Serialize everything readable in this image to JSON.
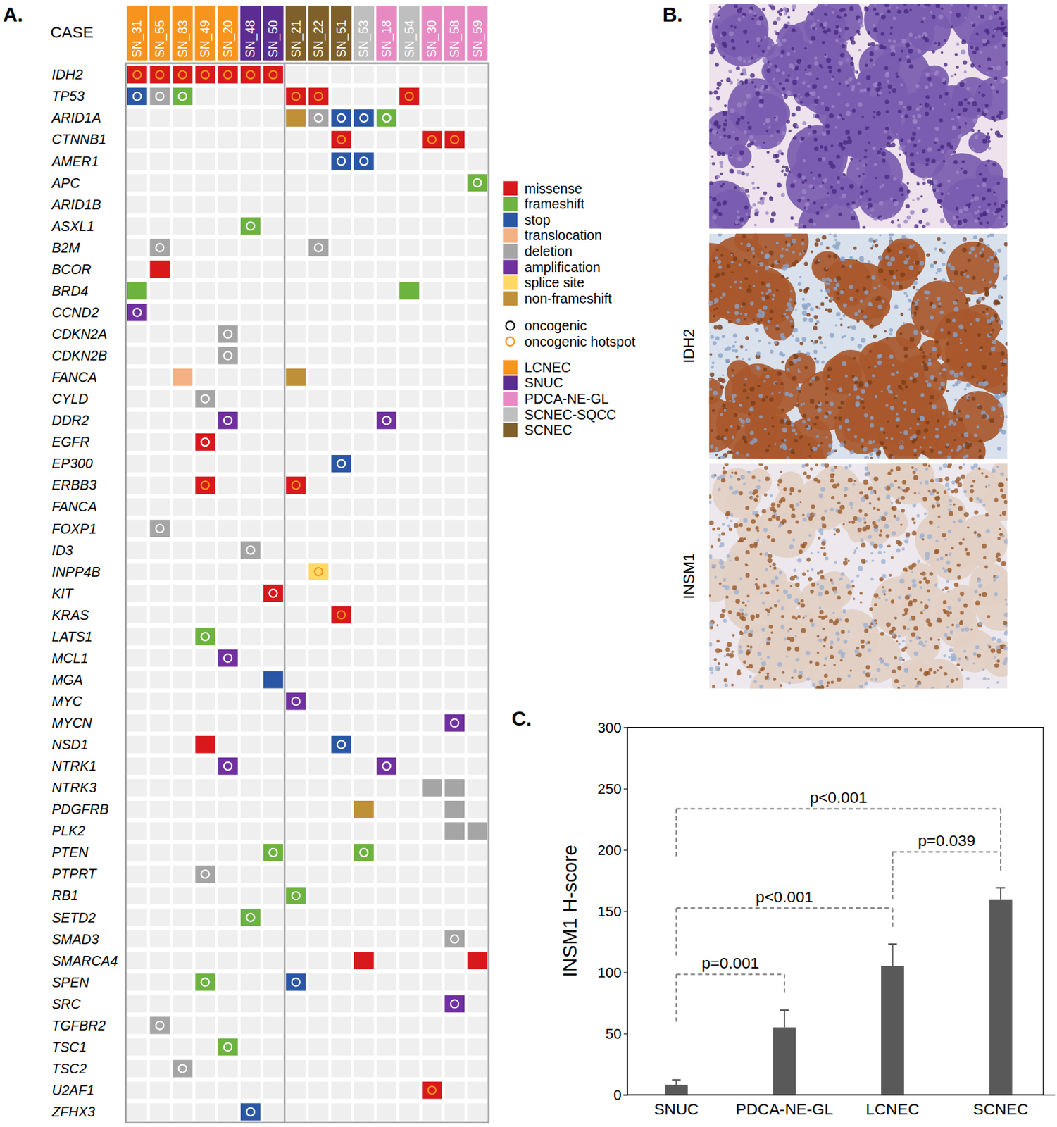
{
  "chart_data": [
    {
      "type": "oncoprint",
      "title": "A.",
      "row_header": "CASE",
      "cases": [
        {
          "name": "SN_31",
          "group": "LCNEC"
        },
        {
          "name": "SN_55",
          "group": "LCNEC"
        },
        {
          "name": "SN_83",
          "group": "LCNEC"
        },
        {
          "name": "SN_49",
          "group": "LCNEC"
        },
        {
          "name": "SN_20",
          "group": "LCNEC"
        },
        {
          "name": "SN_48",
          "group": "SNUC"
        },
        {
          "name": "SN_50",
          "group": "SNUC"
        },
        {
          "name": "SN_21",
          "group": "SCNEC"
        },
        {
          "name": "SN_22",
          "group": "SCNEC"
        },
        {
          "name": "SN_51",
          "group": "SCNEC"
        },
        {
          "name": "SN_53",
          "group": "SCNEC-SQCC"
        },
        {
          "name": "SN_18",
          "group": "PDCA-NE-GL"
        },
        {
          "name": "SN_54",
          "group": "SCNEC-SQCC"
        },
        {
          "name": "SN_30",
          "group": "PDCA-NE-GL"
        },
        {
          "name": "SN_58",
          "group": "PDCA-NE-GL"
        },
        {
          "name": "SN_59",
          "group": "PDCA-NE-GL"
        }
      ],
      "genes": [
        "IDH2",
        "TP53",
        "ARID1A",
        "CTNNB1",
        "AMER1",
        "APC",
        "ARID1B",
        "ASXL1",
        "B2M",
        "BCOR",
        "BRD4",
        "CCND2",
        "CDKN2A",
        "CDKN2B",
        "FANCA",
        "CYLD",
        "DDR2",
        "EGFR",
        "EP300",
        "ERBB3",
        "FANCA",
        "FOXP1",
        "ID3",
        "INPP4B",
        "KIT",
        "KRAS",
        "LATS1",
        "MCL1",
        "MGA",
        "MYC",
        "MYCN",
        "NSD1",
        "NTRK1",
        "NTRK3",
        "PDGFRB",
        "PLK2",
        "PTEN",
        "PTPRT",
        "RB1",
        "SETD2",
        "SMAD3",
        "SMARCA4",
        "SPEN",
        "SRC",
        "TGFBR2",
        "TSC1",
        "TSC2",
        "U2AF1",
        "ZFHX3"
      ],
      "cells": [
        [
          {
            "case": "SN_31",
            "type": "missense",
            "marker": "oncogenic hotspot"
          },
          {
            "case": "SN_55",
            "type": "missense",
            "marker": "oncogenic hotspot"
          },
          {
            "case": "SN_83",
            "type": "missense",
            "marker": "oncogenic hotspot"
          },
          {
            "case": "SN_49",
            "type": "missense",
            "marker": "oncogenic hotspot"
          },
          {
            "case": "SN_20",
            "type": "missense",
            "marker": "oncogenic hotspot"
          },
          {
            "case": "SN_48",
            "type": "missense",
            "marker": "oncogenic hotspot"
          },
          {
            "case": "SN_50",
            "type": "missense",
            "marker": "oncogenic hotspot"
          }
        ],
        [
          {
            "case": "SN_31",
            "type": "stop",
            "marker": "oncogenic"
          },
          {
            "case": "SN_55",
            "type": "deletion",
            "marker": "oncogenic"
          },
          {
            "case": "SN_83",
            "type": "frameshift",
            "marker": "oncogenic"
          },
          {
            "case": "SN_21",
            "type": "missense",
            "marker": "oncogenic hotspot"
          },
          {
            "case": "SN_22",
            "type": "missense",
            "marker": "oncogenic hotspot"
          },
          {
            "case": "SN_54",
            "type": "missense",
            "marker": "oncogenic hotspot"
          }
        ],
        [
          {
            "case": "SN_21",
            "type": "non-frameshift"
          },
          {
            "case": "SN_22",
            "type": "deletion",
            "marker": "oncogenic"
          },
          {
            "case": "SN_51",
            "type": "stop",
            "marker": "oncogenic"
          },
          {
            "case": "SN_53",
            "type": "stop",
            "marker": "oncogenic"
          },
          {
            "case": "SN_18",
            "type": "frameshift",
            "marker": "oncogenic"
          }
        ],
        [
          {
            "case": "SN_51",
            "type": "missense",
            "marker": "oncogenic hotspot"
          },
          {
            "case": "SN_30",
            "type": "missense",
            "marker": "oncogenic hotspot"
          },
          {
            "case": "SN_58",
            "type": "missense",
            "marker": "oncogenic hotspot"
          }
        ],
        [
          {
            "case": "SN_51",
            "type": "stop",
            "marker": "oncogenic"
          },
          {
            "case": "SN_53",
            "type": "stop",
            "marker": "oncogenic"
          }
        ],
        [
          {
            "case": "SN_59",
            "type": "frameshift",
            "marker": "oncogenic"
          }
        ],
        [],
        [
          {
            "case": "SN_48",
            "type": "frameshift",
            "marker": "oncogenic"
          }
        ],
        [
          {
            "case": "SN_55",
            "type": "deletion",
            "marker": "oncogenic"
          },
          {
            "case": "SN_22",
            "type": "deletion",
            "marker": "oncogenic"
          }
        ],
        [
          {
            "case": "SN_55",
            "type": "missense"
          }
        ],
        [
          {
            "case": "SN_31",
            "type": "frameshift"
          },
          {
            "case": "SN_54",
            "type": "frameshift"
          }
        ],
        [
          {
            "case": "SN_31",
            "type": "amplification",
            "marker": "oncogenic"
          }
        ],
        [
          {
            "case": "SN_20",
            "type": "deletion",
            "marker": "oncogenic"
          }
        ],
        [
          {
            "case": "SN_20",
            "type": "deletion",
            "marker": "oncogenic"
          }
        ],
        [
          {
            "case": "SN_83",
            "type": "translocation"
          },
          {
            "case": "SN_21",
            "type": "non-frameshift"
          }
        ],
        [
          {
            "case": "SN_49",
            "type": "deletion",
            "marker": "oncogenic"
          }
        ],
        [
          {
            "case": "SN_20",
            "type": "amplification",
            "marker": "oncogenic"
          },
          {
            "case": "SN_18",
            "type": "amplification",
            "marker": "oncogenic"
          }
        ],
        [
          {
            "case": "SN_49",
            "type": "missense",
            "marker": "oncogenic"
          }
        ],
        [
          {
            "case": "SN_51",
            "type": "stop",
            "marker": "oncogenic"
          }
        ],
        [
          {
            "case": "SN_49",
            "type": "missense",
            "marker": "oncogenic hotspot"
          },
          {
            "case": "SN_21",
            "type": "missense",
            "marker": "oncogenic hotspot"
          }
        ],
        [],
        [
          {
            "case": "SN_55",
            "type": "deletion",
            "marker": "oncogenic"
          }
        ],
        [
          {
            "case": "SN_48",
            "type": "deletion",
            "marker": "oncogenic"
          }
        ],
        [
          {
            "case": "SN_22",
            "type": "splice site",
            "marker": "oncogenic hotspot"
          }
        ],
        [
          {
            "case": "SN_50",
            "type": "missense",
            "marker": "oncogenic"
          }
        ],
        [
          {
            "case": "SN_51",
            "type": "missense",
            "marker": "oncogenic hotspot"
          }
        ],
        [
          {
            "case": "SN_49",
            "type": "frameshift",
            "marker": "oncogenic"
          }
        ],
        [
          {
            "case": "SN_20",
            "type": "amplification",
            "marker": "oncogenic"
          }
        ],
        [
          {
            "case": "SN_50",
            "type": "stop"
          }
        ],
        [
          {
            "case": "SN_21",
            "type": "amplification",
            "marker": "oncogenic"
          }
        ],
        [
          {
            "case": "SN_58",
            "type": "amplification",
            "marker": "oncogenic"
          }
        ],
        [
          {
            "case": "SN_49",
            "type": "missense"
          },
          {
            "case": "SN_51",
            "type": "stop",
            "marker": "oncogenic"
          }
        ],
        [
          {
            "case": "SN_20",
            "type": "amplification",
            "marker": "oncogenic"
          },
          {
            "case": "SN_18",
            "type": "amplification",
            "marker": "oncogenic"
          }
        ],
        [
          {
            "case": "SN_30",
            "type": "deletion"
          },
          {
            "case": "SN_58",
            "type": "deletion"
          }
        ],
        [
          {
            "case": "SN_53",
            "type": "non-frameshift"
          },
          {
            "case": "SN_58",
            "type": "deletion"
          }
        ],
        [
          {
            "case": "SN_58",
            "type": "deletion"
          },
          {
            "case": "SN_59",
            "type": "deletion"
          }
        ],
        [
          {
            "case": "SN_50",
            "type": "frameshift",
            "marker": "oncogenic"
          },
          {
            "case": "SN_53",
            "type": "frameshift",
            "marker": "oncogenic"
          }
        ],
        [
          {
            "case": "SN_49",
            "type": "deletion",
            "marker": "oncogenic"
          }
        ],
        [
          {
            "case": "SN_21",
            "type": "frameshift",
            "marker": "oncogenic"
          }
        ],
        [
          {
            "case": "SN_48",
            "type": "frameshift",
            "marker": "oncogenic"
          }
        ],
        [
          {
            "case": "SN_58",
            "type": "deletion",
            "marker": "oncogenic"
          }
        ],
        [
          {
            "case": "SN_53",
            "type": "missense"
          },
          {
            "case": "SN_59",
            "type": "missense"
          }
        ],
        [
          {
            "case": "SN_49",
            "type": "frameshift",
            "marker": "oncogenic"
          },
          {
            "case": "SN_21",
            "type": "stop",
            "marker": "oncogenic"
          }
        ],
        [
          {
            "case": "SN_58",
            "type": "amplification",
            "marker": "oncogenic"
          }
        ],
        [
          {
            "case": "SN_55",
            "type": "deletion",
            "marker": "oncogenic"
          }
        ],
        [
          {
            "case": "SN_20",
            "type": "frameshift",
            "marker": "oncogenic"
          }
        ],
        [
          {
            "case": "SN_83",
            "type": "deletion",
            "marker": "oncogenic"
          }
        ],
        [
          {
            "case": "SN_30",
            "type": "missense",
            "marker": "oncogenic hotspot"
          }
        ],
        [
          {
            "case": "SN_48",
            "type": "stop",
            "marker": "oncogenic"
          }
        ]
      ],
      "alteration_types": [
        {
          "name": "missense",
          "color": "#d7191c"
        },
        {
          "name": "frameshift",
          "color": "#6db33f"
        },
        {
          "name": "stop",
          "color": "#2a57a5"
        },
        {
          "name": "translocation",
          "color": "#f4b183"
        },
        {
          "name": "deletion",
          "color": "#a5a5a5"
        },
        {
          "name": "amplification",
          "color": "#7030a0"
        },
        {
          "name": "splice site",
          "color": "#ffd966"
        },
        {
          "name": "non-frameshift",
          "color": "#bf9037"
        }
      ],
      "markers": [
        {
          "name": "oncogenic",
          "color": "#ffffff"
        },
        {
          "name": "oncogenic hotspot",
          "color": "#f7941d"
        }
      ],
      "groups": [
        {
          "name": "LCNEC",
          "color": "#f7941d"
        },
        {
          "name": "SNUC",
          "color": "#5c2d91"
        },
        {
          "name": "PDCA-NE-GL",
          "color": "#e78ac3"
        },
        {
          "name": "SCNEC-SQCC",
          "color": "#bfbfbf"
        },
        {
          "name": "SCNEC",
          "color": "#7f5f2a"
        }
      ]
    },
    {
      "type": "image_panel",
      "title": "B.",
      "labels": [
        null,
        "IDH2",
        "INSM1"
      ]
    },
    {
      "type": "bar",
      "title": "C.",
      "categories": [
        "SNUC",
        "PDCA-NE-GL",
        "LCNEC",
        "SCNEC"
      ],
      "values": [
        8,
        55,
        105,
        159
      ],
      "errors": [
        4,
        14,
        18,
        10
      ],
      "color": "#595959",
      "ylabel": "INSM1 H-score",
      "ylim": [
        0,
        300
      ],
      "yticks": [
        0,
        50,
        100,
        150,
        200,
        250,
        300
      ],
      "annotations": [
        {
          "text": "p=0.001",
          "between": [
            "SNUC",
            "PDCA-NE-GL"
          ]
        },
        {
          "text": "p<0.001",
          "between": [
            "SNUC",
            "LCNEC"
          ]
        },
        {
          "text": "p=0.039",
          "between": [
            "LCNEC",
            "SCNEC"
          ]
        },
        {
          "text": "p<0.001",
          "between": [
            "SNUC",
            "SCNEC"
          ]
        }
      ]
    }
  ]
}
